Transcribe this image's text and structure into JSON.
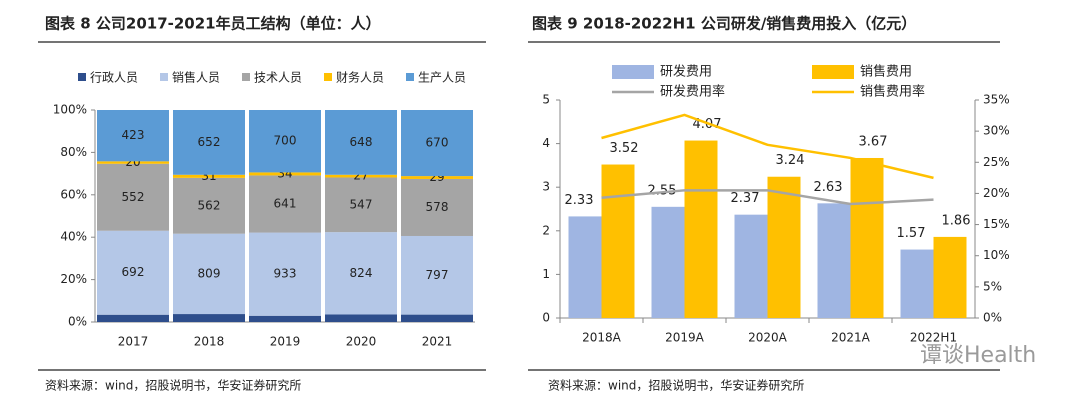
{
  "chart_data": [
    {
      "type": "stacked_percent_bar",
      "title": "图表 8 公司2017-2021年员工结构（单位：人）",
      "categories": [
        "2017",
        "2018",
        "2019",
        "2020",
        "2021"
      ],
      "series": [
        {
          "name": "行政人员",
          "color": "#2e4e8c",
          "values": [
            60,
            80,
            70,
            75,
            75
          ],
          "data_labels": false
        },
        {
          "name": "销售人员",
          "color": "#b4c7e7",
          "values": [
            692,
            809,
            933,
            824,
            797
          ]
        },
        {
          "name": "技术人员",
          "color": "#a5a5a5",
          "values": [
            552,
            562,
            641,
            547,
            578
          ]
        },
        {
          "name": "财务人员",
          "color": "#ffc000",
          "values": [
            20,
            31,
            34,
            27,
            29
          ]
        },
        {
          "name": "生产人员",
          "color": "#5b9bd5",
          "values": [
            423,
            652,
            700,
            648,
            670
          ]
        }
      ],
      "ylim": [
        0,
        100
      ],
      "yticks": [
        {
          "value": 0,
          "label": "0%"
        },
        {
          "value": 20,
          "label": "20%"
        },
        {
          "value": 40,
          "label": "40%"
        },
        {
          "value": 60,
          "label": "60%"
        },
        {
          "value": 80,
          "label": "80%"
        },
        {
          "value": 100,
          "label": "100%"
        }
      ],
      "legend": "top"
    },
    {
      "type": "bar_line",
      "title": "图表 9 2018-2022H1 公司研发/销售费用投入（亿元）",
      "categories": [
        "2018A",
        "2019A",
        "2020A",
        "2021A",
        "2022H1"
      ],
      "series": [
        {
          "name": "研发费用",
          "type": "bar",
          "color": "#9fb5e2",
          "values": [
            2.33,
            2.55,
            2.37,
            2.63,
            1.57
          ]
        },
        {
          "name": "销售费用",
          "type": "bar",
          "color": "#ffc000",
          "values": [
            3.52,
            4.07,
            3.24,
            3.67,
            1.86
          ]
        },
        {
          "name": "研发费用率",
          "type": "line",
          "axis": "y2",
          "color": "#a5a5a5",
          "values": [
            19.3,
            20.5,
            20.5,
            18.3,
            19.0
          ]
        },
        {
          "name": "销售费用率",
          "type": "line",
          "axis": "y2",
          "color": "#ffc000",
          "values": [
            28.9,
            32.6,
            27.8,
            25.7,
            22.5
          ]
        }
      ],
      "ylim": [
        0,
        5
      ],
      "yticks": [
        0,
        1,
        2,
        3,
        4,
        5
      ],
      "y2lim": [
        0,
        35
      ],
      "y2ticks": [
        {
          "value": 0,
          "label": "0%"
        },
        {
          "value": 5,
          "label": "5%"
        },
        {
          "value": 10,
          "label": "10%"
        },
        {
          "value": 15,
          "label": "15%"
        },
        {
          "value": 20,
          "label": "20%"
        },
        {
          "value": 25,
          "label": "25%"
        },
        {
          "value": 30,
          "label": "30%"
        },
        {
          "value": 35,
          "label": "35%"
        }
      ],
      "legend": "top"
    }
  ],
  "sources": [
    "资料来源：wind，招股说明书，华安证券研究所",
    "资料来源：wind，招股说明书，华安证券研究所"
  ],
  "watermark": "谭谈Health"
}
